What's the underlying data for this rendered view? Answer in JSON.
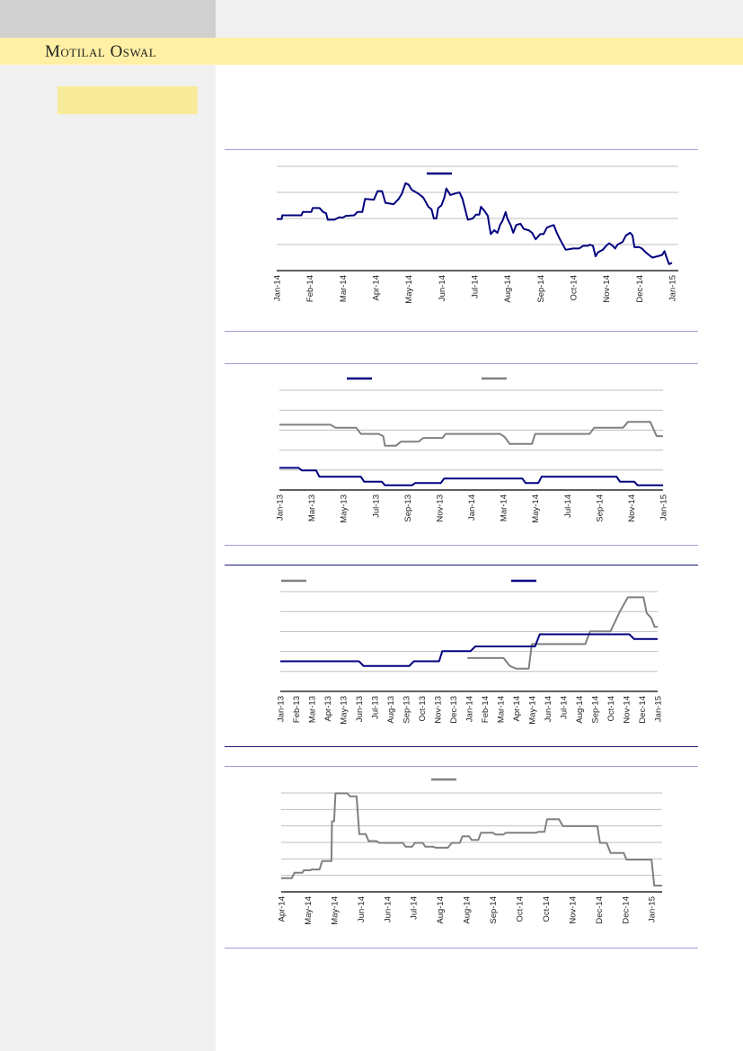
{
  "header": {
    "logo_text": "Motilal Oswal"
  },
  "colors": {
    "navy": "#000080",
    "grey": "#808080",
    "brand_band": "#fff0a5",
    "tag_box": "#f8eb9a"
  },
  "chart_data": [
    {
      "type": "line",
      "y_units": "gridline index (no y-axis labels shown)",
      "ylim": [
        0,
        4
      ],
      "x_units": "months since Jan-14",
      "xlim": [
        0,
        12
      ],
      "tick_labels": [
        "Jan-14",
        "Feb-14",
        "Mar-14",
        "Apr-14",
        "May-14",
        "Jun-14",
        "Jul-14",
        "Aug-14",
        "Sep-14",
        "Oct-14",
        "Nov-14",
        "Dec-14",
        "Jan-15"
      ],
      "grid": true,
      "legend": "top-center",
      "series": [
        {
          "name": "",
          "color": "#000080",
          "points": [
            [
              0,
              1.98
            ],
            [
              0.15,
              1.98
            ],
            [
              0.17,
              2.12
            ],
            [
              0.75,
              2.12
            ],
            [
              0.79,
              2.25
            ],
            [
              1.05,
              2.25
            ],
            [
              1.09,
              2.4
            ],
            [
              1.3,
              2.4
            ],
            [
              1.41,
              2.25
            ],
            [
              1.5,
              2.2
            ],
            [
              1.55,
              1.95
            ],
            [
              1.75,
              1.95
            ],
            [
              1.9,
              2.05
            ],
            [
              2.0,
              2.03
            ],
            [
              2.1,
              2.1
            ],
            [
              2.35,
              2.12
            ],
            [
              2.45,
              2.25
            ],
            [
              2.6,
              2.25
            ],
            [
              2.68,
              2.75
            ],
            [
              2.95,
              2.72
            ],
            [
              3.06,
              3.05
            ],
            [
              3.2,
              3.05
            ],
            [
              3.3,
              2.6
            ],
            [
              3.55,
              2.55
            ],
            [
              3.7,
              2.75
            ],
            [
              3.8,
              2.95
            ],
            [
              3.91,
              3.35
            ],
            [
              4.0,
              3.3
            ],
            [
              4.1,
              3.1
            ],
            [
              4.3,
              2.95
            ],
            [
              4.45,
              2.8
            ],
            [
              4.6,
              2.45
            ],
            [
              4.7,
              2.35
            ],
            [
              4.77,
              2.0
            ],
            [
              4.85,
              2.0
            ],
            [
              4.9,
              2.4
            ],
            [
              5.0,
              2.5
            ],
            [
              5.09,
              2.8
            ],
            [
              5.15,
              3.15
            ],
            [
              5.27,
              2.9
            ],
            [
              5.4,
              2.95
            ],
            [
              5.55,
              3.0
            ],
            [
              5.64,
              2.75
            ],
            [
              5.73,
              2.3
            ],
            [
              5.8,
              1.95
            ],
            [
              5.95,
              2.0
            ],
            [
              6.05,
              2.15
            ],
            [
              6.15,
              2.15
            ],
            [
              6.2,
              2.45
            ],
            [
              6.3,
              2.3
            ],
            [
              6.41,
              2.1
            ],
            [
              6.45,
              1.75
            ],
            [
              6.5,
              1.4
            ],
            [
              6.6,
              1.55
            ],
            [
              6.7,
              1.45
            ],
            [
              6.78,
              1.75
            ],
            [
              6.85,
              1.9
            ],
            [
              6.95,
              2.25
            ],
            [
              7.0,
              2.0
            ],
            [
              7.1,
              1.75
            ],
            [
              7.18,
              1.45
            ],
            [
              7.27,
              1.75
            ],
            [
              7.4,
              1.8
            ],
            [
              7.5,
              1.6
            ],
            [
              7.65,
              1.55
            ],
            [
              7.75,
              1.45
            ],
            [
              7.86,
              1.2
            ],
            [
              8.0,
              1.4
            ],
            [
              8.1,
              1.4
            ],
            [
              8.2,
              1.65
            ],
            [
              8.3,
              1.7
            ],
            [
              8.41,
              1.75
            ],
            [
              8.5,
              1.45
            ],
            [
              8.6,
              1.2
            ],
            [
              8.77,
              0.8
            ],
            [
              9.0,
              0.85
            ],
            [
              9.18,
              0.85
            ],
            [
              9.3,
              0.95
            ],
            [
              9.45,
              0.95
            ],
            [
              9.5,
              1.0
            ],
            [
              9.6,
              0.95
            ],
            [
              9.68,
              0.55
            ],
            [
              9.75,
              0.7
            ],
            [
              9.9,
              0.8
            ],
            [
              10.0,
              0.95
            ],
            [
              10.09,
              1.05
            ],
            [
              10.2,
              0.95
            ],
            [
              10.27,
              0.85
            ],
            [
              10.35,
              1.0
            ],
            [
              10.5,
              1.1
            ],
            [
              10.6,
              1.35
            ],
            [
              10.73,
              1.45
            ],
            [
              10.8,
              1.35
            ],
            [
              10.86,
              0.9
            ],
            [
              11.0,
              0.9
            ],
            [
              11.09,
              0.85
            ],
            [
              11.2,
              0.7
            ],
            [
              11.35,
              0.55
            ],
            [
              11.41,
              0.5
            ],
            [
              11.55,
              0.55
            ],
            [
              11.7,
              0.6
            ],
            [
              11.77,
              0.75
            ],
            [
              11.85,
              0.45
            ],
            [
              11.91,
              0.25
            ],
            [
              12.0,
              0.3
            ]
          ]
        }
      ]
    },
    {
      "type": "line",
      "y_units": "gridline index (no y-axis labels shown)",
      "ylim": [
        0,
        5
      ],
      "x_units": "months since Jan-13",
      "xlim": [
        0,
        24
      ],
      "tick_labels": [
        "Jan-13",
        "Mar-13",
        "May-13",
        "Jul-13",
        "Sep-13",
        "Nov-13",
        "Jan-14",
        "Mar-14",
        "May-14",
        "Jul-14",
        "Sep-14",
        "Nov-14",
        "Jan-15"
      ],
      "grid": true,
      "legend": "top",
      "series": [
        {
          "name": "",
          "color": "#000080",
          "points": [
            [
              0,
              1.11
            ],
            [
              1.2,
              1.11
            ],
            [
              1.4,
              0.98
            ],
            [
              2.3,
              0.98
            ],
            [
              2.5,
              0.66
            ],
            [
              5.1,
              0.66
            ],
            [
              5.3,
              0.42
            ],
            [
              6.4,
              0.42
            ],
            [
              6.6,
              0.24
            ],
            [
              8.3,
              0.24
            ],
            [
              8.5,
              0.35
            ],
            [
              10.1,
              0.35
            ],
            [
              10.3,
              0.57
            ],
            [
              15.2,
              0.57
            ],
            [
              15.4,
              0.35
            ],
            [
              16.2,
              0.35
            ],
            [
              16.4,
              0.66
            ],
            [
              21.1,
              0.66
            ],
            [
              21.3,
              0.42
            ],
            [
              22.2,
              0.42
            ],
            [
              22.4,
              0.24
            ],
            [
              24,
              0.24
            ]
          ]
        },
        {
          "name": "",
          "color": "#808080",
          "points": [
            [
              0,
              3.27
            ],
            [
              3.2,
              3.27
            ],
            [
              3.5,
              3.12
            ],
            [
              4.8,
              3.12
            ],
            [
              5.1,
              2.81
            ],
            [
              6.2,
              2.81
            ],
            [
              6.5,
              2.7
            ],
            [
              6.6,
              2.22
            ],
            [
              7.3,
              2.22
            ],
            [
              7.6,
              2.42
            ],
            [
              8.7,
              2.42
            ],
            [
              9,
              2.61
            ],
            [
              10.2,
              2.61
            ],
            [
              10.4,
              2.81
            ],
            [
              13.8,
              2.81
            ],
            [
              14.1,
              2.65
            ],
            [
              14.4,
              2.31
            ],
            [
              15.8,
              2.31
            ],
            [
              16,
              2.81
            ],
            [
              19.4,
              2.81
            ],
            [
              19.7,
              3.12
            ],
            [
              21.5,
              3.12
            ],
            [
              21.8,
              3.41
            ],
            [
              23.2,
              3.41
            ],
            [
              23.6,
              2.7
            ],
            [
              24,
              2.7
            ]
          ]
        }
      ]
    },
    {
      "type": "line",
      "y_units": "gridline index (no y-axis labels shown)",
      "ylim": [
        0,
        5
      ],
      "x_units": "months since Jan-13",
      "xlim": [
        0,
        24
      ],
      "tick_labels": [
        "Jan-13",
        "Feb-13",
        "Mar-13",
        "Apr-13",
        "May-13",
        "Jun-13",
        "Jul-13",
        "Aug-13",
        "Sep-13",
        "Oct-13",
        "Nov-13",
        "Dec-13",
        "Jan-14",
        "Feb-14",
        "Mar-14",
        "Apr-14",
        "May-14",
        "Jun-14",
        "Jul-14",
        "Aug-14",
        "Sep-14",
        "Oct-14",
        "Nov-14",
        "Dec-14",
        "Jan-15"
      ],
      "grid": true,
      "legend": "top",
      "series": [
        {
          "name": "",
          "color": "#808080",
          "points": [
            [
              11.9,
              1.67
            ],
            [
              14.2,
              1.67
            ],
            [
              14.6,
              1.27
            ],
            [
              15.0,
              1.14
            ],
            [
              15.8,
              1.14
            ],
            [
              16.0,
              2.37
            ],
            [
              19.4,
              2.37
            ],
            [
              19.7,
              3.01
            ],
            [
              21.0,
              3.01
            ],
            [
              21.6,
              4.0
            ],
            [
              22.1,
              4.71
            ],
            [
              23.1,
              4.71
            ],
            [
              23.3,
              3.93
            ],
            [
              23.6,
              3.66
            ],
            [
              23.8,
              3.24
            ],
            [
              24,
              3.24
            ]
          ]
        },
        {
          "name": "",
          "color": "#000080",
          "points": [
            [
              0,
              1.51
            ],
            [
              5.0,
              1.51
            ],
            [
              5.3,
              1.27
            ],
            [
              8.2,
              1.27
            ],
            [
              8.5,
              1.51
            ],
            [
              10.1,
              1.51
            ],
            [
              10.3,
              2.02
            ],
            [
              12.1,
              2.02
            ],
            [
              12.4,
              2.25
            ],
            [
              16.2,
              2.25
            ],
            [
              16.5,
              2.86
            ],
            [
              22.2,
              2.86
            ],
            [
              22.5,
              2.62
            ],
            [
              24,
              2.62
            ]
          ]
        }
      ]
    },
    {
      "type": "line",
      "y_units": "gridline index (no y-axis labels shown)",
      "ylim": [
        0,
        6
      ],
      "x_units": "tick index (half-month steps from Apr-14)",
      "xlim": [
        0,
        14.4
      ],
      "tick_labels": [
        "Apr-14",
        "May-14",
        "May-14",
        "Jun-14",
        "Jun-14",
        "Jul-14",
        "Aug-14",
        "Aug-14",
        "Sep-14",
        "Oct-14",
        "Oct-14",
        "Nov-14",
        "Dec-14",
        "Dec-14",
        "Jan-15"
      ],
      "grid": true,
      "legend": "top-center",
      "series": [
        {
          "name": "",
          "color": "#808080",
          "points": [
            [
              0,
              0.83
            ],
            [
              0.4,
              0.83
            ],
            [
              0.5,
              1.16
            ],
            [
              0.8,
              1.16
            ],
            [
              0.85,
              1.31
            ],
            [
              1.1,
              1.31
            ],
            [
              1.15,
              1.36
            ],
            [
              1.45,
              1.36
            ],
            [
              1.55,
              1.87
            ],
            [
              1.9,
              1.87
            ],
            [
              1.92,
              4.28
            ],
            [
              2.0,
              4.28
            ],
            [
              2.05,
              5.98
            ],
            [
              2.5,
              5.98
            ],
            [
              2.6,
              5.8
            ],
            [
              2.85,
              5.8
            ],
            [
              2.95,
              3.5
            ],
            [
              3.2,
              3.5
            ],
            [
              3.3,
              3.08
            ],
            [
              3.6,
              3.08
            ],
            [
              3.7,
              2.97
            ],
            [
              4.6,
              2.97
            ],
            [
              4.7,
              2.74
            ],
            [
              4.95,
              2.74
            ],
            [
              5.05,
              2.97
            ],
            [
              5.35,
              2.97
            ],
            [
              5.45,
              2.74
            ],
            [
              5.75,
              2.74
            ],
            [
              5.85,
              2.68
            ],
            [
              6.3,
              2.68
            ],
            [
              6.45,
              2.97
            ],
            [
              6.75,
              2.97
            ],
            [
              6.85,
              3.37
            ],
            [
              7.1,
              3.37
            ],
            [
              7.2,
              3.15
            ],
            [
              7.45,
              3.15
            ],
            [
              7.55,
              3.59
            ],
            [
              8.0,
              3.59
            ],
            [
              8.1,
              3.48
            ],
            [
              8.4,
              3.48
            ],
            [
              8.5,
              3.59
            ],
            [
              9.65,
              3.59
            ],
            [
              9.7,
              3.64
            ],
            [
              9.95,
              3.64
            ],
            [
              10.05,
              4.4
            ],
            [
              10.5,
              4.4
            ],
            [
              10.65,
              3.99
            ],
            [
              11.95,
              3.99
            ],
            [
              12.05,
              2.97
            ],
            [
              12.3,
              2.97
            ],
            [
              12.45,
              2.36
            ],
            [
              12.95,
              2.36
            ],
            [
              13.05,
              1.96
            ],
            [
              14.0,
              1.96
            ],
            [
              14.1,
              0.38
            ],
            [
              14.4,
              0.38
            ]
          ]
        }
      ]
    }
  ]
}
